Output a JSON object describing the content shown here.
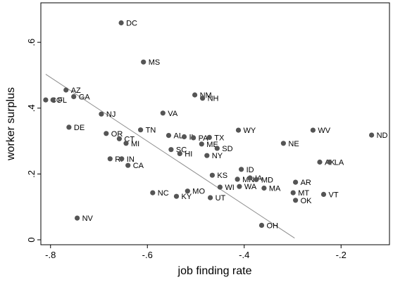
{
  "chart_data": {
    "type": "scatter",
    "title": "",
    "xlabel": "job finding rate",
    "ylabel": "worker surplus",
    "xlim": [
      -0.82,
      -0.1
    ],
    "ylim": [
      -0.015,
      0.72
    ],
    "x_ticks": [
      -0.8,
      -0.6,
      -0.4,
      -0.2
    ],
    "x_tick_labels": [
      "-.8",
      "-.6",
      "-.4",
      "-.2"
    ],
    "y_ticks": [
      0,
      0.2,
      0.4,
      0.6
    ],
    "y_tick_labels": [
      "0",
      ".2",
      ".4",
      ".6"
    ],
    "grid": false,
    "legend": "none",
    "colors": {
      "points": "#555555",
      "fit_line": "#8c8c8c"
    },
    "fit_line": {
      "x": [
        -0.81,
        -0.296
      ],
      "y": [
        0.503,
        0.005
      ]
    },
    "points": [
      {
        "label": "DC",
        "x": -0.654,
        "y": 0.659
      },
      {
        "label": "MS",
        "x": -0.608,
        "y": 0.54
      },
      {
        "label": "NM",
        "x": -0.502,
        "y": 0.44
      },
      {
        "label": "NH",
        "x": -0.486,
        "y": 0.43
      },
      {
        "label": "AZ",
        "x": -0.768,
        "y": 0.455
      },
      {
        "label": "GA",
        "x": -0.752,
        "y": 0.435
      },
      {
        "label": "CO",
        "x": -0.81,
        "y": 0.425
      },
      {
        "label": "FL",
        "x": -0.795,
        "y": 0.425
      },
      {
        "label": "NJ",
        "x": -0.695,
        "y": 0.382
      },
      {
        "label": "VA",
        "x": -0.568,
        "y": 0.385
      },
      {
        "label": "DE",
        "x": -0.762,
        "y": 0.342
      },
      {
        "label": "OR",
        "x": -0.685,
        "y": 0.323
      },
      {
        "label": "TN",
        "x": -0.614,
        "y": 0.334
      },
      {
        "label": "CT",
        "x": -0.658,
        "y": 0.307
      },
      {
        "label": "MI",
        "x": -0.644,
        "y": 0.293
      },
      {
        "label": "AL",
        "x": -0.556,
        "y": 0.317
      },
      {
        "label": "IL",
        "x": -0.524,
        "y": 0.313
      },
      {
        "label": "PA",
        "x": -0.505,
        "y": 0.31
      },
      {
        "label": "TX",
        "x": -0.472,
        "y": 0.311
      },
      {
        "label": "ME",
        "x": -0.488,
        "y": 0.291
      },
      {
        "label": "SC",
        "x": -0.551,
        "y": 0.274
      },
      {
        "label": "SD",
        "x": -0.456,
        "y": 0.278
      },
      {
        "label": "HI",
        "x": -0.533,
        "y": 0.262
      },
      {
        "label": "NY",
        "x": -0.477,
        "y": 0.256
      },
      {
        "label": "WY",
        "x": -0.412,
        "y": 0.333
      },
      {
        "label": "WV",
        "x": -0.258,
        "y": 0.333
      },
      {
        "label": "ND",
        "x": -0.137,
        "y": 0.318
      },
      {
        "label": "NE",
        "x": -0.319,
        "y": 0.293
      },
      {
        "label": "RI",
        "x": -0.677,
        "y": 0.246
      },
      {
        "label": "IN",
        "x": -0.653,
        "y": 0.246
      },
      {
        "label": "CA",
        "x": -0.64,
        "y": 0.226
      },
      {
        "label": "AK",
        "x": -0.244,
        "y": 0.236
      },
      {
        "label": "LA",
        "x": -0.224,
        "y": 0.236
      },
      {
        "label": "ID",
        "x": -0.406,
        "y": 0.214
      },
      {
        "label": "KS",
        "x": -0.466,
        "y": 0.196
      },
      {
        "label": "MN",
        "x": -0.414,
        "y": 0.184
      },
      {
        "label": "IA",
        "x": -0.388,
        "y": 0.188
      },
      {
        "label": "MD",
        "x": -0.375,
        "y": 0.183
      },
      {
        "label": "AR",
        "x": -0.294,
        "y": 0.175
      },
      {
        "label": "WI",
        "x": -0.45,
        "y": 0.16
      },
      {
        "label": "WA",
        "x": -0.41,
        "y": 0.162
      },
      {
        "label": "MA",
        "x": -0.359,
        "y": 0.157
      },
      {
        "label": "MO",
        "x": -0.517,
        "y": 0.148
      },
      {
        "label": "NC",
        "x": -0.589,
        "y": 0.143
      },
      {
        "label": "MT",
        "x": -0.299,
        "y": 0.143
      },
      {
        "label": "VT",
        "x": -0.236,
        "y": 0.138
      },
      {
        "label": "KY",
        "x": -0.54,
        "y": 0.132
      },
      {
        "label": "UT",
        "x": -0.47,
        "y": 0.128
      },
      {
        "label": "OK",
        "x": -0.294,
        "y": 0.12
      },
      {
        "label": "NV",
        "x": -0.745,
        "y": 0.066
      },
      {
        "label": "OH",
        "x": -0.364,
        "y": 0.044
      }
    ]
  }
}
